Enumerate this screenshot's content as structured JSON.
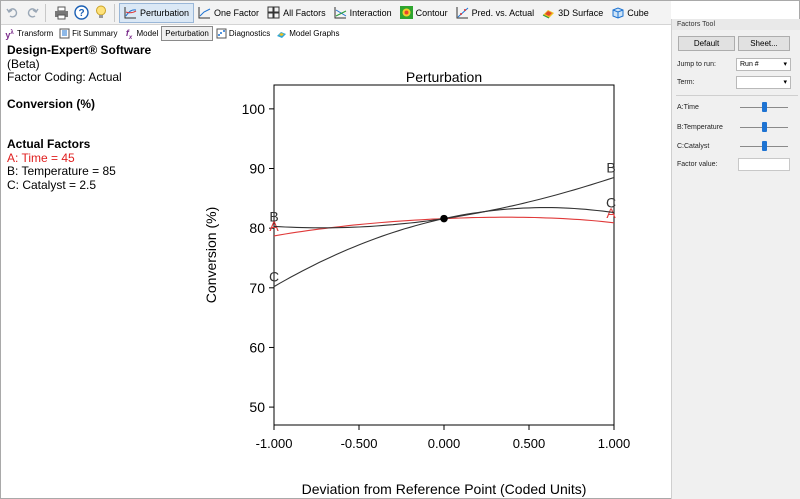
{
  "toolbar": {
    "buttons": [
      {
        "label": "Perturbation",
        "active": true
      },
      {
        "label": "One Factor"
      },
      {
        "label": "All Factors"
      },
      {
        "label": "Interaction"
      },
      {
        "label": "Contour"
      },
      {
        "label": "Pred. vs. Actual"
      },
      {
        "label": "3D Surface"
      },
      {
        "label": "Cube"
      }
    ]
  },
  "subbar": {
    "buttons": [
      {
        "label": "Transform"
      },
      {
        "label": "Fit Summary"
      },
      {
        "label": "Model"
      },
      {
        "label": "Perturbation",
        "active": true
      },
      {
        "label": "Diagnostics"
      },
      {
        "label": "Model Graphs"
      }
    ]
  },
  "info": {
    "software": "Design-Expert® Software",
    "beta": "(Beta)",
    "coding": "Factor Coding: Actual",
    "response": "Conversion (%)",
    "actual_factors_header": "Actual Factors",
    "factor_a": "A: Time = 45",
    "factor_b": "B: Temperature = 85",
    "factor_c": "C: Catalyst = 2.5"
  },
  "panel": {
    "title": "Factors Tool",
    "default_label": "Default",
    "sheet_label": "Sheet...",
    "jump_label": "Jump to run:",
    "jump_value": "Run #",
    "term_label": "Term:",
    "term_value": "",
    "slider_a_label": "A:Time",
    "slider_b_label": "B:Temperature",
    "slider_c_label": "C:Catalyst",
    "slider_a_value": 0.5,
    "slider_b_value": 0.5,
    "slider_c_value": 0.5,
    "factor_value_label": "Factor value:"
  },
  "colors": {
    "factor_a": "#e03a3a",
    "factor_other": "#333333",
    "slider": "#1e73d2"
  },
  "chart_data": {
    "type": "line",
    "title": "Perturbation",
    "xlabel": "Deviation from Reference Point (Coded Units)",
    "ylabel": "Conversion (%)",
    "xlim": [
      -1.0,
      1.0
    ],
    "ylim": [
      47,
      104
    ],
    "xticks": [
      "-1.000",
      "-0.500",
      "0.000",
      "0.500",
      "1.000"
    ],
    "yticks": [
      "50",
      "60",
      "70",
      "80",
      "90",
      "100"
    ],
    "reference_point": {
      "x": 0.0,
      "y": 81.6
    },
    "series": [
      {
        "name": "A",
        "color": "#e03a3a",
        "x": [
          -1.0,
          -0.5,
          0.0,
          0.5,
          1.0
        ],
        "y": [
          78.7,
          80.6,
          81.6,
          81.8,
          80.9
        ]
      },
      {
        "name": "B",
        "color": "#333333",
        "x": [
          -1.0,
          -0.5,
          0.0,
          0.5,
          1.0
        ],
        "y": [
          80.3,
          80.2,
          81.6,
          84.4,
          88.5
        ]
      },
      {
        "name": "C",
        "color": "#333333",
        "x": [
          -1.0,
          -0.5,
          0.0,
          0.5,
          1.0
        ],
        "y": [
          70.2,
          77.2,
          81.6,
          83.4,
          82.6
        ]
      }
    ]
  }
}
